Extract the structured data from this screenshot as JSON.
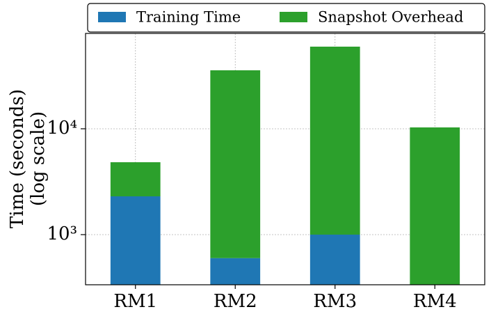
{
  "chart_data": {
    "type": "stacked_bar",
    "y_label": [
      "Time (seconds)",
      "(log scale)"
    ],
    "categories": [
      "RM1",
      "RM2",
      "RM3",
      "RM4"
    ],
    "series": [
      {
        "name": "Training Time",
        "color": "#1f77b4",
        "values": [
          2300,
          600,
          1000,
          0
        ]
      },
      {
        "name": "Snapshot Overhead",
        "color": "#2ca02c",
        "values": [
          2530,
          35100,
          58700,
          10300
        ]
      }
    ],
    "log_scale": true,
    "ylim": [
      336,
      79600
    ],
    "yticks": [
      {
        "value": 1000,
        "label": "10³"
      },
      {
        "value": 10000,
        "label": "10⁴"
      }
    ],
    "grid": true,
    "legend": "top"
  }
}
